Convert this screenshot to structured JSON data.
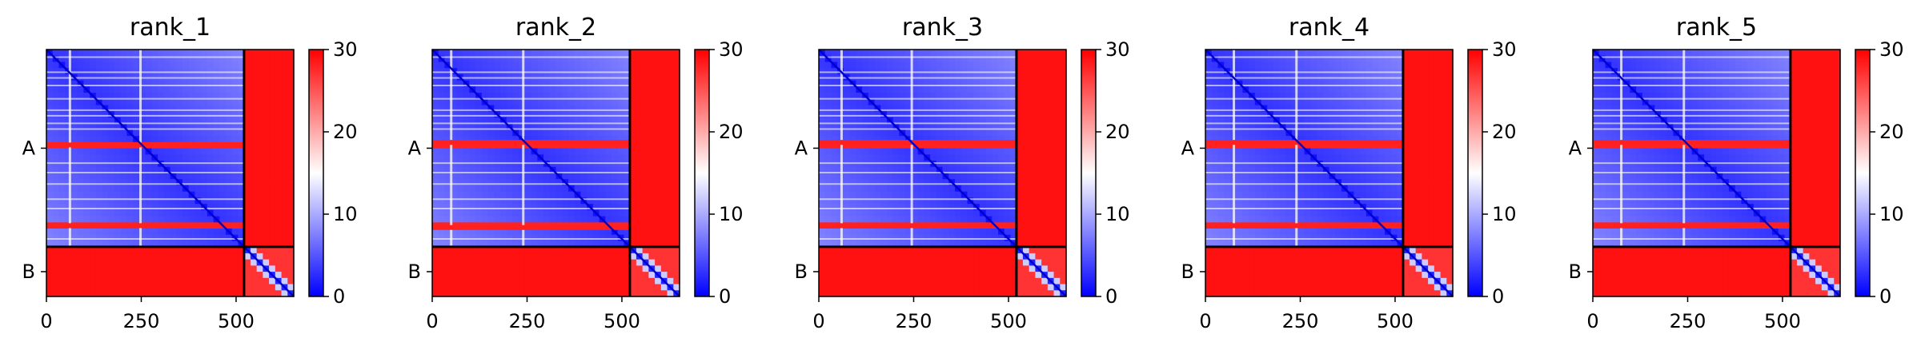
{
  "chart_data": [
    {
      "type": "heatmap",
      "title": "rank_1",
      "x_ticks": [
        0,
        250,
        500
      ],
      "x_range": [
        0,
        652
      ],
      "chains": [
        {
          "label": "A",
          "length": 521
        },
        {
          "label": "B",
          "length": 131
        }
      ],
      "colorbar": {
        "min": 0,
        "max": 30,
        "ticks": [
          0,
          10,
          20,
          30
        ],
        "colors": [
          "#0000ff",
          "#ffffff",
          "#ff0000"
        ]
      },
      "bands": [
        62,
        248,
        118,
        520
      ],
      "red_rows": [
        252,
        465
      ],
      "light_rows": [
        20,
        60,
        75,
        95,
        130,
        160,
        175,
        195,
        210,
        300,
        325,
        355,
        395,
        420,
        500
      ],
      "light_cols": [
        62,
        248
      ]
    },
    {
      "type": "heatmap",
      "title": "rank_2",
      "x_ticks": [
        0,
        250,
        500
      ],
      "x_range": [
        0,
        652
      ],
      "chains": [
        {
          "label": "A",
          "length": 521
        },
        {
          "label": "B",
          "length": 131
        }
      ],
      "colorbar": {
        "min": 0,
        "max": 30,
        "ticks": [
          0,
          10,
          20,
          30
        ],
        "colors": [
          "#0000ff",
          "#ffffff",
          "#ff0000"
        ]
      },
      "bands": [
        50,
        240,
        120,
        520
      ],
      "red_rows": [
        245,
        470
      ],
      "light_rows": [
        20,
        60,
        75,
        95,
        130,
        160,
        175,
        195,
        210,
        300,
        325,
        355,
        395,
        420,
        500
      ],
      "light_cols": [
        50,
        240
      ]
    },
    {
      "type": "heatmap",
      "title": "rank_3",
      "x_ticks": [
        0,
        250,
        500
      ],
      "x_range": [
        0,
        652
      ],
      "chains": [
        {
          "label": "A",
          "length": 521
        },
        {
          "label": "B",
          "length": 131
        }
      ],
      "colorbar": {
        "min": 0,
        "max": 30,
        "ticks": [
          0,
          10,
          20,
          30
        ],
        "colors": [
          "#0000ff",
          "#ffffff",
          "#ff0000"
        ]
      },
      "bands": [
        60,
        245,
        118,
        520
      ],
      "red_rows": [
        245,
        465
      ],
      "light_rows": [
        20,
        60,
        75,
        95,
        130,
        160,
        175,
        195,
        210,
        300,
        325,
        355,
        395,
        420,
        500
      ],
      "light_cols": [
        60,
        245
      ]
    },
    {
      "type": "heatmap",
      "title": "rank_4",
      "x_ticks": [
        0,
        250,
        500
      ],
      "x_range": [
        0,
        652
      ],
      "chains": [
        {
          "label": "A",
          "length": 521
        },
        {
          "label": "B",
          "length": 131
        }
      ],
      "colorbar": {
        "min": 0,
        "max": 30,
        "ticks": [
          0,
          10,
          20,
          30
        ],
        "colors": [
          "#0000ff",
          "#ffffff",
          "#ff0000"
        ]
      },
      "bands": [
        75,
        240,
        125,
        520
      ],
      "red_rows": [
        245,
        465
      ],
      "light_rows": [
        20,
        60,
        75,
        95,
        130,
        160,
        175,
        195,
        210,
        300,
        325,
        355,
        395,
        420,
        500
      ],
      "light_cols": [
        75,
        240
      ]
    },
    {
      "type": "heatmap",
      "title": "rank_5",
      "x_ticks": [
        0,
        250,
        500
      ],
      "x_range": [
        0,
        652
      ],
      "chains": [
        {
          "label": "A",
          "length": 521
        },
        {
          "label": "B",
          "length": 131
        }
      ],
      "colorbar": {
        "min": 0,
        "max": 30,
        "ticks": [
          0,
          10,
          20,
          30
        ],
        "colors": [
          "#0000ff",
          "#ffffff",
          "#ff0000"
        ]
      },
      "bands": [
        75,
        240,
        125,
        520
      ],
      "red_rows": [
        245,
        465
      ],
      "light_rows": [
        20,
        60,
        75,
        95,
        130,
        160,
        175,
        195,
        210,
        300,
        325,
        355,
        395,
        420,
        500
      ],
      "light_cols": [
        75,
        240
      ]
    }
  ]
}
